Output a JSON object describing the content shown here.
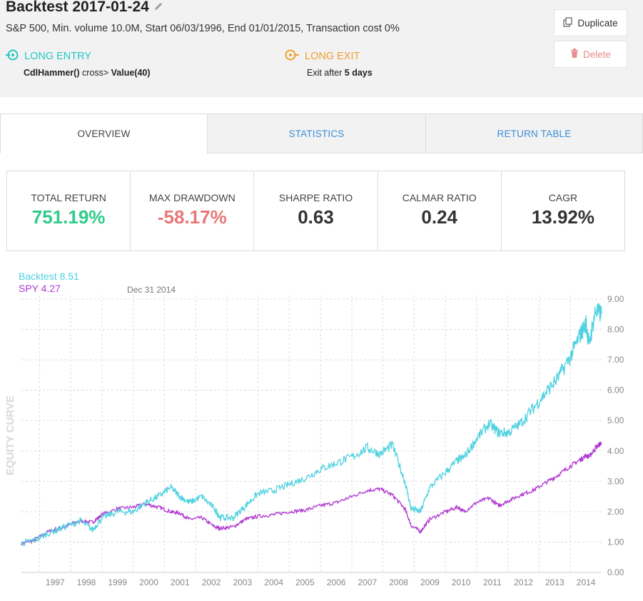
{
  "header": {
    "title": "Backtest 2017-01-24",
    "subtitle": "S&P 500, Min. volume 10.0M, Start 06/03/1996, End 01/01/2015, Transaction cost 0%",
    "entry": {
      "title": "LONG ENTRY",
      "func": "CdlHammer()",
      "op": " cross> ",
      "value": "Value(40)"
    },
    "exit": {
      "title": "LONG EXIT",
      "prefix": "Exit after ",
      "days": "5 days"
    },
    "buttons": {
      "duplicate": "Duplicate",
      "delete": "Delete"
    }
  },
  "tabs": [
    {
      "label": "OVERVIEW",
      "active": true
    },
    {
      "label": "STATISTICS",
      "active": false
    },
    {
      "label": "RETURN TABLE",
      "active": false
    }
  ],
  "stats": [
    {
      "label": "TOTAL RETURN",
      "value": "751.19%",
      "color": "#2ecc8a"
    },
    {
      "label": "MAX DRAWDOWN",
      "value": "-58.17%",
      "color": "#e87878"
    },
    {
      "label": "SHARPE RATIO",
      "value": "0.63",
      "color": "#333333"
    },
    {
      "label": "CALMAR RATIO",
      "value": "0.24",
      "color": "#333333"
    },
    {
      "label": "CAGR",
      "value": "13.92%",
      "color": "#333333"
    }
  ],
  "chart_data": {
    "type": "line",
    "ylabel": "EQUITY CURVE",
    "hover_date": "Dec 31 2014",
    "ylim": [
      0,
      9
    ],
    "yticks": [
      "0.00",
      "1.00",
      "2.00",
      "3.00",
      "4.00",
      "5.00",
      "6.00",
      "7.00",
      "8.00",
      "9.00"
    ],
    "xticks": [
      "1997",
      "1998",
      "1999",
      "2000",
      "2001",
      "2002",
      "2003",
      "2004",
      "2005",
      "2006",
      "2007",
      "2008",
      "2009",
      "2010",
      "2011",
      "2012",
      "2013",
      "2014"
    ],
    "xlim": [
      1996.42,
      2015.0
    ],
    "grid": true,
    "series": [
      {
        "name": "Backtest",
        "legend_value": "8.51",
        "color": "#4fd1e0",
        "x": [
          1996.42,
          1996.8,
          1997.3,
          1997.8,
          1998.3,
          1998.7,
          1999.0,
          1999.5,
          2000.0,
          2000.4,
          2000.8,
          2001.2,
          2001.5,
          2001.8,
          2002.2,
          2002.6,
          2002.8,
          2003.2,
          2003.6,
          2004.0,
          2004.5,
          2005.0,
          2005.5,
          2006.0,
          2006.5,
          2007.0,
          2007.5,
          2007.9,
          2008.3,
          2008.7,
          2008.9,
          2009.2,
          2009.5,
          2010.0,
          2010.4,
          2010.6,
          2011.0,
          2011.4,
          2011.7,
          2012.0,
          2012.4,
          2012.8,
          2013.2,
          2013.6,
          2014.0,
          2014.3,
          2014.5,
          2014.6,
          2014.8,
          2015.0
        ],
        "y": [
          0.95,
          1.05,
          1.3,
          1.5,
          1.7,
          1.4,
          1.8,
          2.0,
          2.0,
          2.3,
          2.5,
          2.8,
          2.5,
          2.3,
          2.5,
          2.1,
          1.8,
          1.8,
          2.2,
          2.6,
          2.7,
          2.9,
          3.1,
          3.4,
          3.6,
          3.8,
          4.1,
          3.9,
          4.2,
          3.0,
          2.1,
          2.0,
          2.8,
          3.3,
          3.7,
          3.8,
          4.4,
          4.9,
          4.6,
          4.6,
          4.9,
          5.4,
          5.9,
          6.4,
          7.1,
          7.8,
          8.2,
          7.5,
          8.6,
          8.51
        ]
      },
      {
        "name": "SPY",
        "legend_value": "4.27",
        "color": "#b038d0",
        "x": [
          1996.42,
          1996.8,
          1997.3,
          1997.8,
          1998.3,
          1998.7,
          1999.0,
          1999.5,
          2000.0,
          2000.4,
          2000.8,
          2001.2,
          2001.5,
          2001.8,
          2002.2,
          2002.6,
          2002.8,
          2003.2,
          2003.6,
          2004.0,
          2004.5,
          2005.0,
          2005.5,
          2006.0,
          2006.5,
          2007.0,
          2007.5,
          2007.9,
          2008.3,
          2008.7,
          2008.9,
          2009.2,
          2009.5,
          2010.0,
          2010.4,
          2010.6,
          2011.0,
          2011.4,
          2011.7,
          2012.0,
          2012.4,
          2012.8,
          2013.2,
          2013.6,
          2014.0,
          2014.3,
          2014.5,
          2014.6,
          2014.8,
          2015.0
        ],
        "y": [
          0.95,
          1.05,
          1.35,
          1.5,
          1.7,
          1.65,
          1.9,
          2.1,
          2.15,
          2.25,
          2.15,
          2.0,
          1.95,
          1.75,
          1.8,
          1.5,
          1.45,
          1.5,
          1.75,
          1.85,
          1.9,
          2.0,
          2.05,
          2.2,
          2.3,
          2.5,
          2.7,
          2.75,
          2.55,
          2.1,
          1.55,
          1.35,
          1.75,
          2.0,
          2.15,
          2.0,
          2.3,
          2.45,
          2.2,
          2.35,
          2.55,
          2.7,
          2.95,
          3.2,
          3.5,
          3.7,
          3.85,
          3.8,
          4.1,
          4.27
        ]
      }
    ]
  }
}
